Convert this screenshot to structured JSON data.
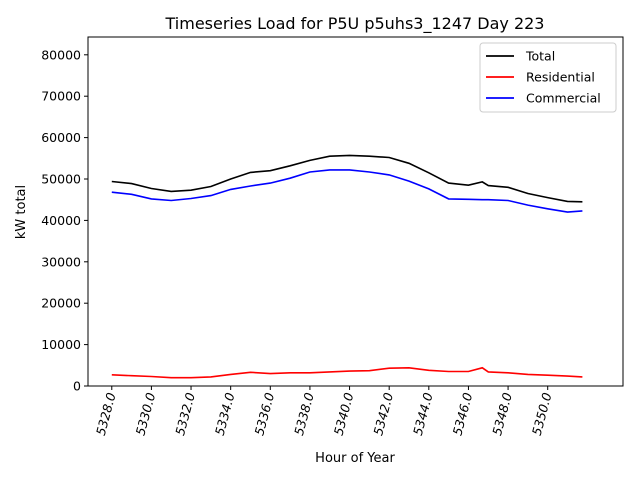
{
  "chart_data": {
    "type": "line",
    "title": "Timeseries Load for P5U p5uhs3_1247  Day 223",
    "xlabel": "Hour of Year",
    "ylabel": "kW total",
    "xlim": [
      5326.8,
      5353.8
    ],
    "ylim": [
      0,
      84300
    ],
    "xticks": [
      5328,
      5330,
      5332,
      5334,
      5336,
      5338,
      5340,
      5342,
      5344,
      5346,
      5348,
      5350
    ],
    "xtick_labels": [
      "5328.0",
      "5330.0",
      "5332.0",
      "5334.0",
      "5336.0",
      "5338.0",
      "5340.0",
      "5342.0",
      "5344.0",
      "5346.0",
      "5348.0",
      "5350.0"
    ],
    "yticks": [
      0,
      10000,
      20000,
      30000,
      40000,
      50000,
      60000,
      70000,
      80000
    ],
    "ytick_labels": [
      "0",
      "10000",
      "20000",
      "30000",
      "40000",
      "50000",
      "60000",
      "70000",
      "80000"
    ],
    "grid": false,
    "legend_position": "top-right",
    "x": [
      5328,
      5329,
      5330,
      5331,
      5332,
      5333,
      5334,
      5335,
      5336,
      5337,
      5338,
      5339,
      5340,
      5341,
      5342,
      5343,
      5344,
      5345,
      5346,
      5346.7,
      5347,
      5348,
      5349,
      5350,
      5351,
      5351.75
    ],
    "series": [
      {
        "name": "Total",
        "color": "#000000",
        "values": [
          49400,
          48900,
          47700,
          47000,
          47300,
          48200,
          50000,
          51600,
          52000,
          53200,
          54500,
          55500,
          55700,
          55500,
          55200,
          53800,
          51500,
          49000,
          48500,
          49300,
          48400,
          48000,
          46500,
          45500,
          44600,
          44500
        ]
      },
      {
        "name": "Residential",
        "color": "#ff0000",
        "values": [
          2700,
          2500,
          2300,
          2000,
          2000,
          2200,
          2800,
          3300,
          3000,
          3200,
          3200,
          3400,
          3600,
          3700,
          4300,
          4400,
          3800,
          3500,
          3500,
          4400,
          3400,
          3200,
          2800,
          2600,
          2400,
          2200
        ]
      },
      {
        "name": "Commercial",
        "color": "#0000ff",
        "values": [
          46800,
          46300,
          45200,
          44800,
          45300,
          46000,
          47500,
          48300,
          49000,
          50200,
          51700,
          52200,
          52200,
          51700,
          51000,
          49500,
          47600,
          45200,
          45100,
          45000,
          45000,
          44800,
          43700,
          42800,
          42000,
          42300
        ]
      }
    ]
  }
}
